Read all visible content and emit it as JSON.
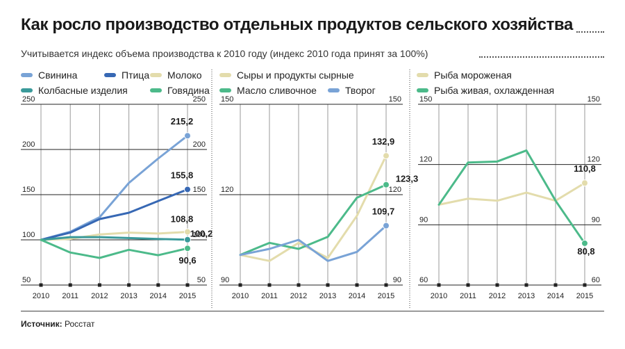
{
  "title": "Как росло производство отдельных продуктов сельского хозяйства",
  "subtitle": "Учитывается индекс объема производства к 2010 году (индекс 2010 года принят за 100%)",
  "source_label": "Источник:",
  "source_value": "Росстат",
  "colors": {
    "light_blue": "#79a3d6",
    "dark_blue": "#3768b4",
    "beige": "#e3dcac",
    "teal": "#3a9a9a",
    "green": "#4cba8a"
  },
  "chart_data": [
    {
      "type": "line",
      "categories": [
        "2010",
        "2011",
        "2012",
        "2013",
        "2014",
        "2015"
      ],
      "ylim": [
        50,
        250
      ],
      "yticks": [
        "250",
        "200",
        "150",
        "100",
        "50"
      ],
      "yticks_right": [
        "250",
        "200",
        "150",
        "100",
        "50"
      ],
      "series": [
        {
          "name": "Свинина",
          "color": "#79a3d6",
          "values": [
            100,
            109,
            125,
            163,
            190,
            215.2
          ],
          "end_label": "215,2"
        },
        {
          "name": "Птица",
          "color": "#3768b4",
          "values": [
            100,
            108,
            123,
            130,
            143,
            155.8
          ],
          "end_label": "155,8"
        },
        {
          "name": "Молоко",
          "color": "#e3dcac",
          "values": [
            100,
            101,
            106,
            108,
            107,
            108.8
          ],
          "end_label": "108,8"
        },
        {
          "name": "Колбасные изделия",
          "color": "#3a9a9a",
          "values": [
            100,
            103,
            103,
            102,
            101,
            100.2
          ],
          "end_label": "100,2"
        },
        {
          "name": "Говядина",
          "color": "#4cba8a",
          "values": [
            100,
            86,
            80,
            89,
            83,
            90.6
          ],
          "end_label": "90,6"
        }
      ]
    },
    {
      "type": "line",
      "categories": [
        "2010",
        "2011",
        "2012",
        "2013",
        "2014",
        "2015"
      ],
      "ylim": [
        90,
        150
      ],
      "yticks": [
        "150",
        "120",
        "90"
      ],
      "yticks_right": [
        "150",
        "120",
        "90"
      ],
      "series": [
        {
          "name": "Сыры и продукты сырные",
          "color": "#e3dcac",
          "values": [
            100,
            98,
            104,
            99,
            113,
            132.9
          ],
          "end_label": "132,9"
        },
        {
          "name": "Масло сливочное",
          "color": "#4cba8a",
          "values": [
            100,
            104,
            102,
            106,
            119,
            123.3
          ],
          "end_label": "123,3"
        },
        {
          "name": "Творог",
          "color": "#79a3d6",
          "values": [
            100,
            102,
            105,
            98,
            101,
            109.7
          ],
          "end_label": "109,7"
        }
      ]
    },
    {
      "type": "line",
      "categories": [
        "2010",
        "2011",
        "2012",
        "2013",
        "2014",
        "2015"
      ],
      "ylim": [
        60,
        150
      ],
      "yticks": [
        "150",
        "120",
        "90",
        "60"
      ],
      "yticks_right": [
        "150",
        "120",
        "90",
        "60"
      ],
      "series": [
        {
          "name": "Рыба мороженая",
          "color": "#e3dcac",
          "values": [
            100,
            103,
            102,
            106,
            102,
            110.8
          ],
          "end_label": "110,8"
        },
        {
          "name": "Рыба живая, охлажденная",
          "color": "#4cba8a",
          "values": [
            100,
            121,
            121.5,
            127,
            102,
            80.8
          ],
          "end_label": "80,8"
        }
      ]
    }
  ]
}
